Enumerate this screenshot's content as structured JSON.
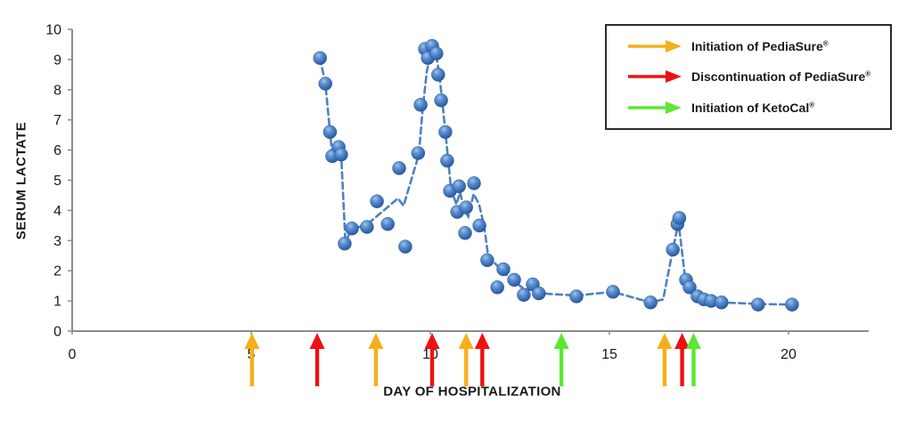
{
  "chart_data": {
    "type": "scatter",
    "title": "",
    "xlabel": "DAY OF HOSPITALIZATION",
    "ylabel": "SERUM LACTATE",
    "xlim": [
      0,
      22
    ],
    "ylim": [
      0,
      10
    ],
    "x_ticks": [
      0,
      5,
      10,
      15,
      20
    ],
    "y_ticks": [
      0,
      1,
      2,
      3,
      4,
      5,
      6,
      7,
      8,
      9,
      10
    ],
    "grid": false,
    "legend_position": "top-right",
    "marker_color": "#3a6db0",
    "line_color": "#4f81bd",
    "line_style": "dashed",
    "axis_color": "#8c8c8c",
    "colors": {
      "orange": "#f5b019",
      "red": "#ee1111",
      "green": "#5be734"
    },
    "series": [
      {
        "name": "Serum lactate",
        "points": [
          [
            6.92,
            9.05
          ],
          [
            7.07,
            8.2
          ],
          [
            7.2,
            6.6
          ],
          [
            7.26,
            5.8
          ],
          [
            7.44,
            6.1
          ],
          [
            7.51,
            5.85
          ],
          [
            7.61,
            2.9
          ],
          [
            7.81,
            3.4
          ],
          [
            8.23,
            3.45
          ],
          [
            8.51,
            4.3
          ],
          [
            8.81,
            3.55
          ],
          [
            9.13,
            5.4
          ],
          [
            9.3,
            2.8
          ],
          [
            9.66,
            5.9
          ],
          [
            9.73,
            7.5
          ],
          [
            9.85,
            9.35
          ],
          [
            9.93,
            9.05
          ],
          [
            10.05,
            9.45
          ],
          [
            10.17,
            9.2
          ],
          [
            10.22,
            8.5
          ],
          [
            10.3,
            7.65
          ],
          [
            10.42,
            6.6
          ],
          [
            10.47,
            5.65
          ],
          [
            10.55,
            4.65
          ],
          [
            10.75,
            3.95
          ],
          [
            10.8,
            4.8
          ],
          [
            10.97,
            3.25
          ],
          [
            11.0,
            4.1
          ],
          [
            11.22,
            4.9
          ],
          [
            11.37,
            3.5
          ],
          [
            11.59,
            2.35
          ],
          [
            11.87,
            1.45
          ],
          [
            12.04,
            2.05
          ],
          [
            12.34,
            1.7
          ],
          [
            12.61,
            1.2
          ],
          [
            12.86,
            1.55
          ],
          [
            13.03,
            1.25
          ],
          [
            14.08,
            1.15
          ],
          [
            15.1,
            1.3
          ],
          [
            16.15,
            0.95
          ],
          [
            16.77,
            2.7
          ],
          [
            16.9,
            3.55
          ],
          [
            16.95,
            3.75
          ],
          [
            17.14,
            1.7
          ],
          [
            17.24,
            1.45
          ],
          [
            17.46,
            1.15
          ],
          [
            17.64,
            1.05
          ],
          [
            17.84,
            1.0
          ],
          [
            18.13,
            0.95
          ],
          [
            19.15,
            0.88
          ],
          [
            20.1,
            0.88
          ]
        ]
      }
    ],
    "trend_line": [
      [
        6.92,
        9.05
      ],
      [
        7.07,
        8.2
      ],
      [
        7.2,
        6.6
      ],
      [
        7.26,
        5.85
      ],
      [
        7.44,
        6.1
      ],
      [
        7.51,
        5.85
      ],
      [
        7.63,
        2.95
      ],
      [
        7.81,
        3.4
      ],
      [
        8.2,
        3.5
      ],
      [
        9.1,
        4.4
      ],
      [
        9.25,
        4.15
      ],
      [
        9.68,
        5.85
      ],
      [
        9.78,
        7.3
      ],
      [
        9.9,
        8.6
      ],
      [
        10.03,
        9.3
      ],
      [
        10.15,
        9.25
      ],
      [
        10.25,
        8.5
      ],
      [
        10.33,
        7.65
      ],
      [
        10.42,
        6.6
      ],
      [
        10.5,
        5.65
      ],
      [
        10.58,
        4.7
      ],
      [
        10.73,
        4.2
      ],
      [
        10.83,
        4.6
      ],
      [
        10.95,
        4.0
      ],
      [
        11.06,
        3.8
      ],
      [
        11.21,
        4.55
      ],
      [
        11.36,
        4.2
      ],
      [
        11.5,
        3.5
      ],
      [
        11.62,
        2.45
      ],
      [
        11.8,
        2.25
      ],
      [
        12.04,
        1.95
      ],
      [
        12.34,
        1.65
      ],
      [
        12.61,
        1.4
      ],
      [
        12.9,
        1.35
      ],
      [
        13.06,
        1.25
      ],
      [
        14.08,
        1.18
      ],
      [
        15.1,
        1.3
      ],
      [
        16.15,
        0.95
      ],
      [
        16.5,
        1.05
      ],
      [
        16.77,
        2.7
      ],
      [
        16.93,
        3.6
      ],
      [
        17.12,
        1.7
      ],
      [
        17.26,
        1.5
      ],
      [
        17.5,
        1.18
      ],
      [
        17.85,
        1.02
      ],
      [
        18.13,
        0.95
      ],
      [
        19.15,
        0.9
      ],
      [
        20.1,
        0.88
      ]
    ],
    "events": [
      {
        "day": 5.02,
        "color_name": "orange",
        "event": "Initiation of PediaSure"
      },
      {
        "day": 6.84,
        "color_name": "red",
        "event": "Discontinuation of PediaSure"
      },
      {
        "day": 8.48,
        "color_name": "orange",
        "event": "Initiation of PediaSure"
      },
      {
        "day": 10.05,
        "color_name": "red",
        "event": "Discontinuation of PediaSure"
      },
      {
        "day": 11.0,
        "color_name": "orange",
        "event": "Initiation of PediaSure"
      },
      {
        "day": 11.45,
        "color_name": "red",
        "event": "Discontinuation of PediaSure"
      },
      {
        "day": 13.66,
        "color_name": "green",
        "event": "Initiation of KetoCal"
      },
      {
        "day": 16.54,
        "color_name": "orange",
        "event": "Initiation of PediaSure"
      },
      {
        "day": 17.03,
        "color_name": "red",
        "event": "Discontinuation of PediaSure"
      },
      {
        "day": 17.35,
        "color_name": "green",
        "event": "Initiation of KetoCal"
      }
    ]
  },
  "legend": {
    "items": [
      {
        "label": "Initiation of PediaSure",
        "mark": "®",
        "color": "#f5b019"
      },
      {
        "label": "Discontinuation of PediaSure",
        "mark": "®",
        "color": "#ee1111"
      },
      {
        "label": "Initiation of KetoCal",
        "mark": "®",
        "color": "#5be734"
      }
    ]
  }
}
